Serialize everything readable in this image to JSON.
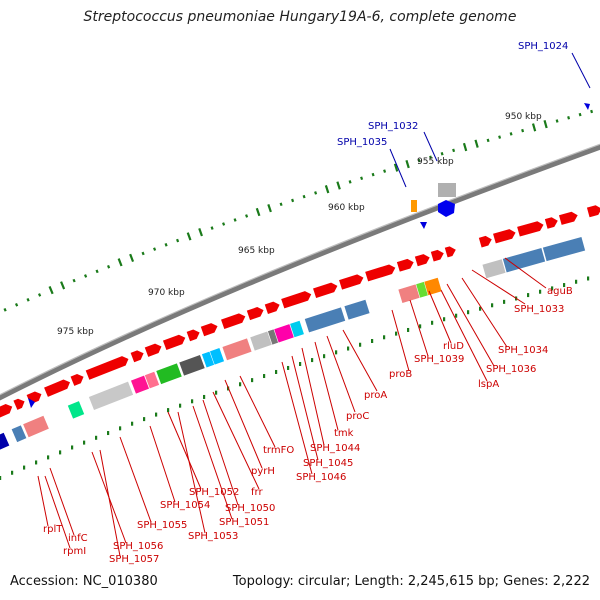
{
  "title": "Streptococcus pneumoniae Hungary19A-6, complete genome",
  "footer": {
    "accession": "Accession: NC_010380",
    "topology": "Topology: circular; Length: 2,245,615 bp; Genes: 2,222"
  },
  "scale_labels": [
    "950 kbp",
    "955 kbp",
    "960 kbp",
    "965 kbp",
    "970 kbp",
    "975 kbp"
  ],
  "gene_labels_red": [
    "aguB",
    "SPH_1033",
    "SPH_1034",
    "SPH_1036",
    "lspA",
    "rluD",
    "SPH_1039",
    "proB",
    "proA",
    "proC",
    "tmk",
    "SPH_1044",
    "SPH_1045",
    "SPH_1046",
    "trmFO",
    "pyrH",
    "frr",
    "SPH_1050",
    "SPH_1051",
    "SPH_1052",
    "SPH_1053",
    "SPH_1054",
    "SPH_1055",
    "SPH_1056",
    "SPH_1057",
    "rpmI",
    "infC",
    "rplT"
  ],
  "gene_labels_blue": [
    "SPH_1024",
    "SPH_1032",
    "SPH_1035"
  ],
  "colors": {
    "backbone": "#808080",
    "gene_red": "#ee0000",
    "gene_blue": "#4a7fb5",
    "tick": "#1a7a1a",
    "label_red": "#cc0000",
    "label_blue": "#0000aa"
  }
}
